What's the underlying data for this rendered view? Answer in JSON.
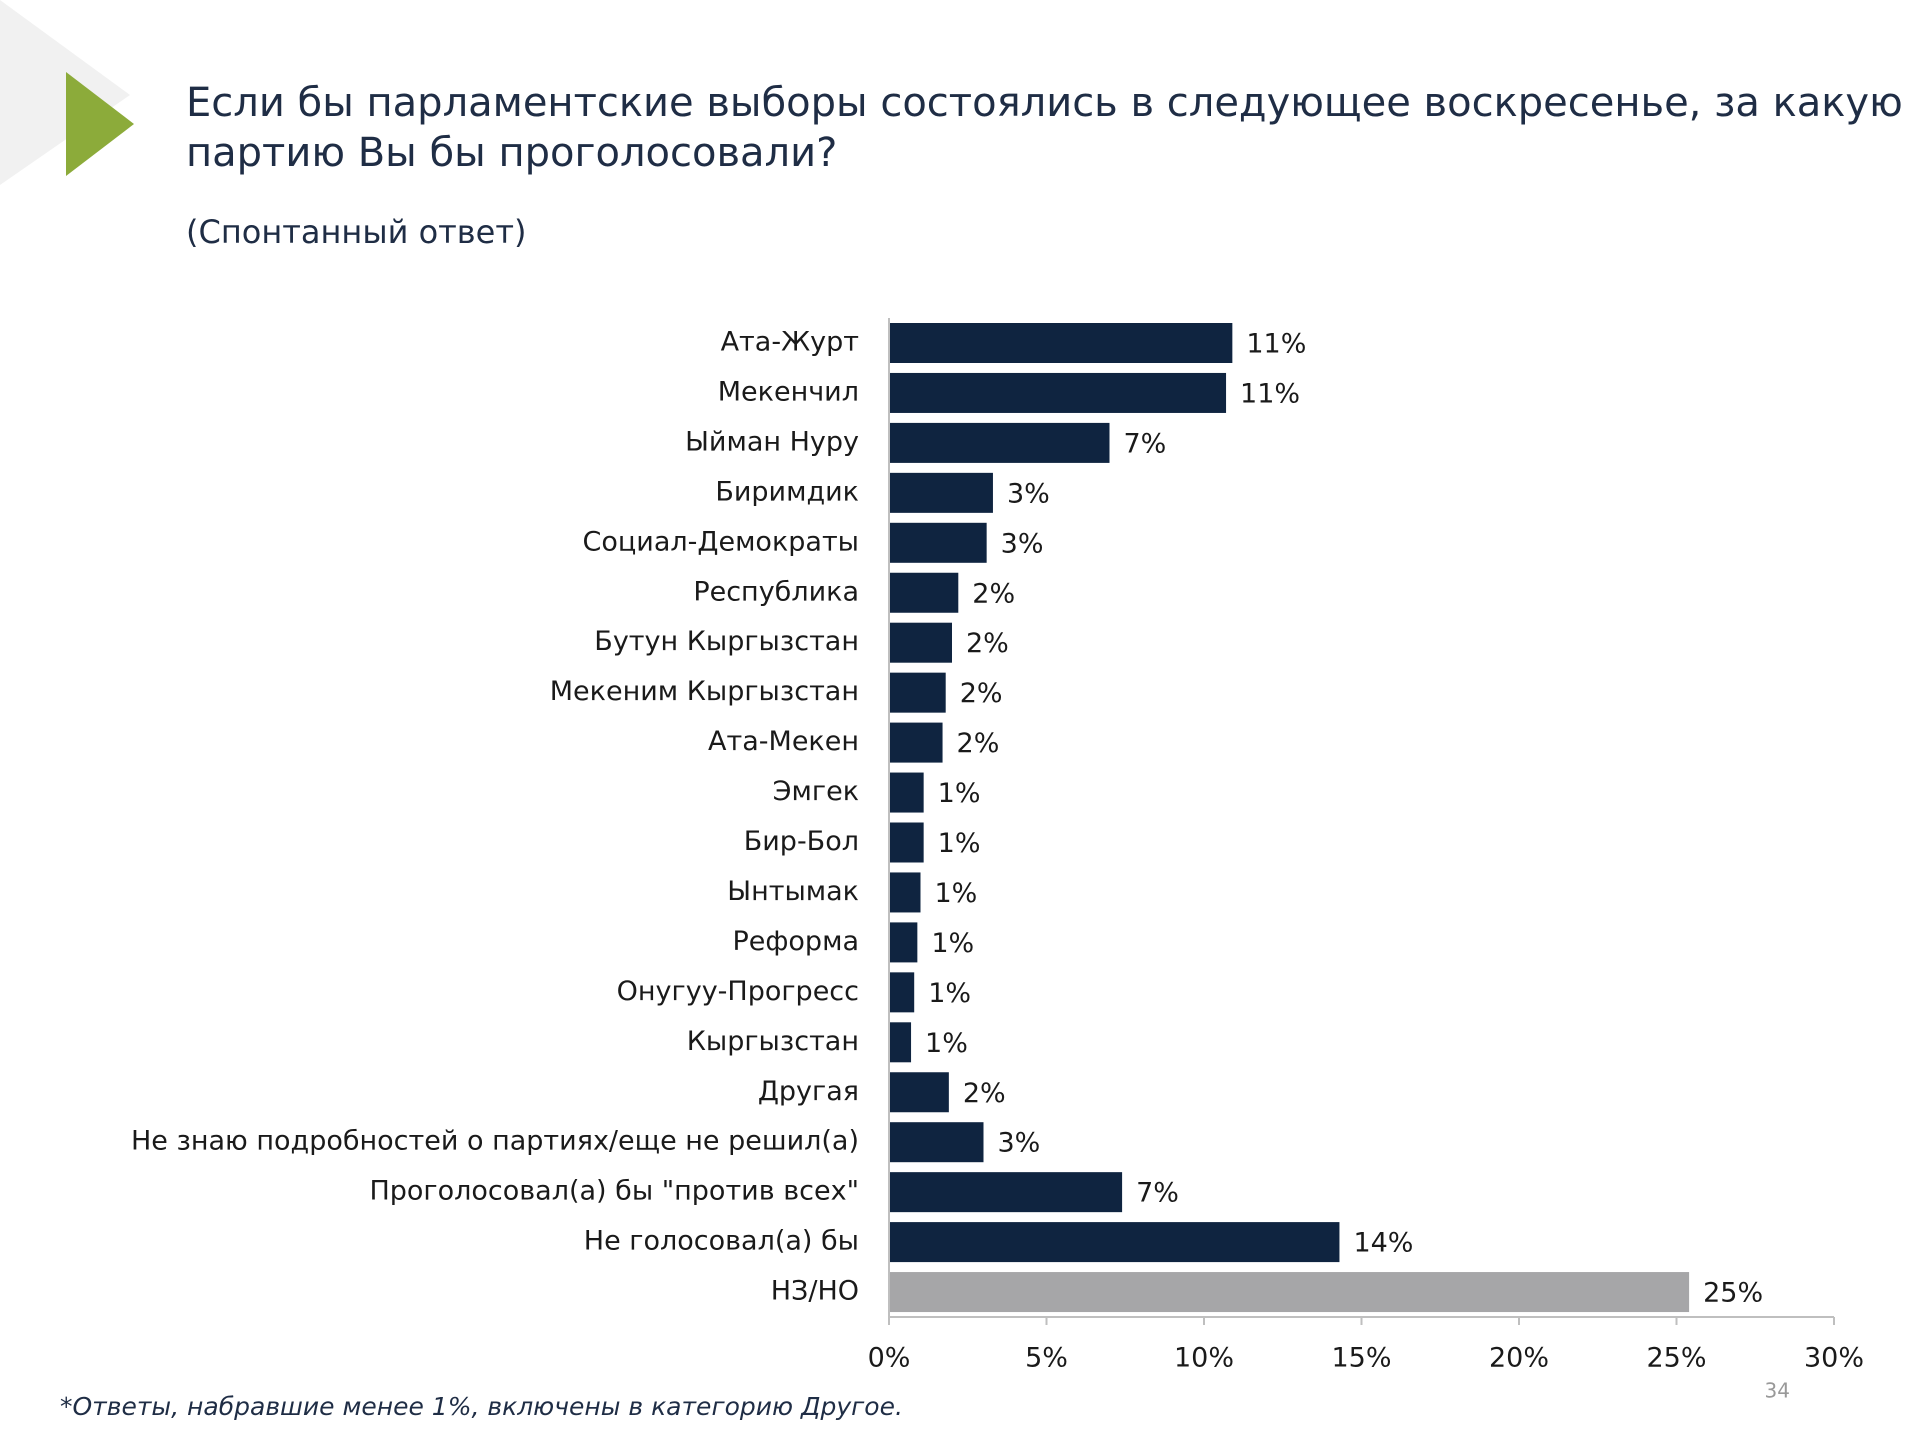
{
  "chart_data": {
    "type": "hbar",
    "title": [
      "Если бы парламентские выборы состоялись в следующее воскресенье, за какую",
      "партию Вы бы проголосовали?"
    ],
    "subtitle": "(Спонтанный ответ)",
    "categories": [
      "Ата-Журт",
      "Мекенчил",
      "Ыйман Нуру",
      "Биримдик",
      "Социал-Демократы",
      "Республика",
      "Бутун Кыргызстан",
      "Мекеним Кыргызстан",
      "Ата-Мекен",
      "Эмгек",
      "Бир-Бол",
      "Ынтымак",
      "Реформа",
      "Онугуу-Прогресс",
      "Кыргызстан",
      "Другая",
      "Не знаю подробностей о партиях/еще не решил(а)",
      "Проголосовал(а) бы \"против всех\"",
      "Не голосовал(а) бы",
      "НЗ/НО"
    ],
    "values": [
      10.9,
      10.7,
      7.0,
      3.3,
      3.1,
      2.2,
      2.0,
      1.8,
      1.7,
      1.1,
      1.1,
      1.0,
      0.9,
      0.8,
      0.7,
      1.9,
      3.0,
      7.4,
      14.3,
      25.4
    ],
    "value_labels": [
      "11%",
      "11%",
      "7%",
      "3%",
      "3%",
      "2%",
      "2%",
      "2%",
      "2%",
      "1%",
      "1%",
      "1%",
      "1%",
      "1%",
      "1%",
      "2%",
      "3%",
      "7%",
      "14%",
      "25%"
    ],
    "colors": [
      "#0f2440",
      "#0f2440",
      "#0f2440",
      "#0f2440",
      "#0f2440",
      "#0f2440",
      "#0f2440",
      "#0f2440",
      "#0f2440",
      "#0f2440",
      "#0f2440",
      "#0f2440",
      "#0f2440",
      "#0f2440",
      "#0f2440",
      "#0f2440",
      "#0f2440",
      "#0f2440",
      "#0f2440",
      "#a6a6a8"
    ],
    "xlim": [
      0,
      30
    ],
    "xticks": [
      {
        "value": 0,
        "label": "0%"
      },
      {
        "value": 5,
        "label": "5%"
      },
      {
        "value": 10,
        "label": "10%"
      },
      {
        "value": 15,
        "label": "15%"
      },
      {
        "value": 20,
        "label": "20%"
      },
      {
        "value": 25,
        "label": "25%"
      },
      {
        "value": 30,
        "label": "30%"
      }
    ],
    "footnote": "*Ответы, набравшие менее 1%, включены в категорию Другое."
  },
  "page_number": "34"
}
